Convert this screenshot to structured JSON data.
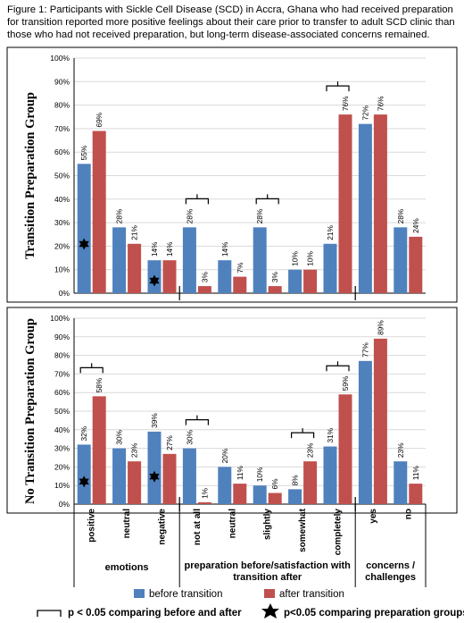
{
  "caption": "Figure 1:  Participants with Sickle Cell Disease (SCD) in Accra, Ghana who had received preparation for transition reported more positive feelings about their care prior to transfer to adult SCD clinic than those who had not received preparation, but long-term disease-associated concerns remained.",
  "colors": {
    "before": "#4f81bd",
    "after": "#c0504d",
    "axis": "#000000",
    "grid": "#d9d9d9"
  },
  "chart_data": [
    {
      "type": "bar",
      "ylabel": "Transition Preparation Group",
      "ylim": [
        0,
        100
      ],
      "yticks": [
        "0%",
        "10%",
        "20%",
        "30%",
        "40%",
        "50%",
        "60%",
        "70%",
        "80%",
        "90%",
        "100%"
      ],
      "categories": [
        "positive",
        "neutral",
        "negative",
        "not at all",
        "neutral",
        "slightly",
        "somewhat",
        "completely",
        "yes",
        "no"
      ],
      "series": [
        {
          "name": "before transition",
          "values": [
            55,
            28,
            14,
            28,
            14,
            28,
            10,
            21,
            72,
            28
          ],
          "labels": [
            "55%",
            "28%",
            "14%",
            "28%",
            "14%",
            "28%",
            "10%",
            "21%",
            "72%",
            "28%"
          ]
        },
        {
          "name": "after transition",
          "values": [
            69,
            21,
            14,
            3,
            7,
            3,
            10,
            76,
            76,
            24
          ],
          "labels": [
            "69%",
            "21%",
            "14%",
            "3%",
            "7%",
            "3%",
            "10%",
            "76%",
            "76%",
            "24%"
          ]
        }
      ],
      "brackets": [
        3,
        5,
        7
      ],
      "stars": [
        0,
        2
      ],
      "grid": true
    },
    {
      "type": "bar",
      "ylabel": "No Transition Preparation Group",
      "ylim": [
        0,
        100
      ],
      "yticks": [
        "0%",
        "10%",
        "20%",
        "30%",
        "40%",
        "50%",
        "60%",
        "70%",
        "80%",
        "90%",
        "100%"
      ],
      "categories": [
        "positive",
        "neutral",
        "negative",
        "not at all",
        "neutral",
        "slightly",
        "somewhat",
        "completely",
        "yes",
        "no"
      ],
      "series": [
        {
          "name": "before transition",
          "values": [
            32,
            30,
            39,
            30,
            20,
            10,
            8,
            31,
            77,
            23
          ],
          "labels": [
            "32%",
            "30%",
            "39%",
            "30%",
            "20%",
            "10%",
            "8%",
            "31%",
            "77%",
            "23%"
          ]
        },
        {
          "name": "after transition",
          "values": [
            58,
            23,
            27,
            1,
            11,
            6,
            23,
            59,
            89,
            11
          ],
          "labels": [
            "58%",
            "23%",
            "27%",
            "1%",
            "11%",
            "6%",
            "23%",
            "59%",
            "89%",
            "11%"
          ]
        }
      ],
      "brackets": [
        0,
        3,
        6,
        7
      ],
      "stars": [
        0,
        2
      ],
      "grid": true
    }
  ],
  "groups": [
    {
      "label": "emotions"
    },
    {
      "label": "preparation before/satisfaction with transition after"
    },
    {
      "label": "concerns / challenges"
    }
  ],
  "legend": {
    "before": "before transition",
    "after": "after transition",
    "bracket_note": "p < 0.05 comparing before and after",
    "star_note": "p<0.05 comparing preparation groups"
  }
}
